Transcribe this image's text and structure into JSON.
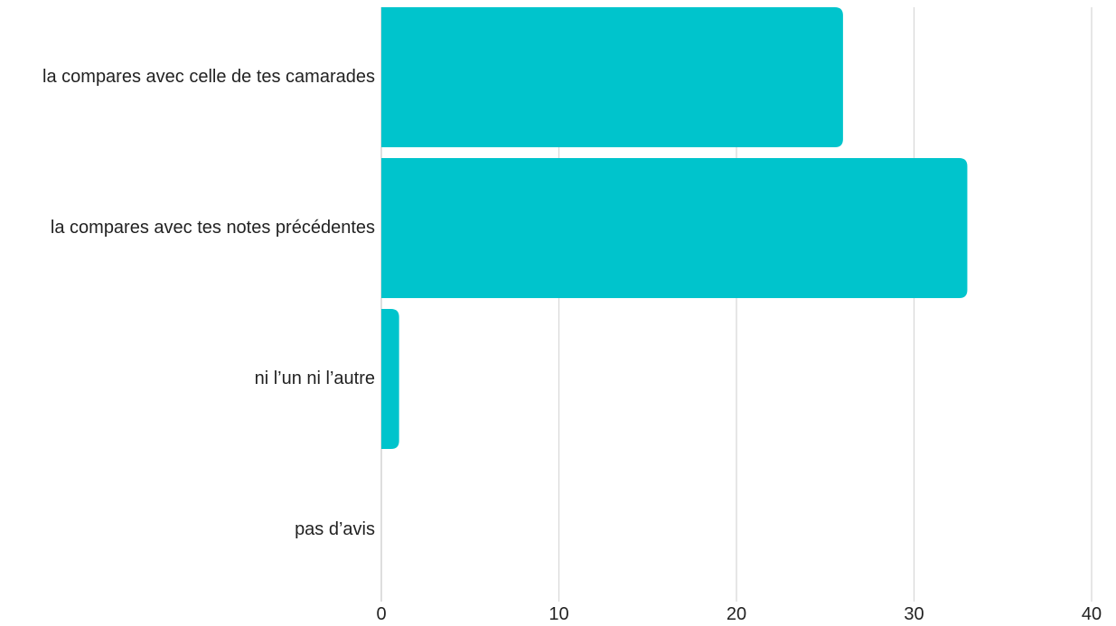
{
  "chart_data": {
    "type": "bar",
    "orientation": "horizontal",
    "title": "",
    "xlabel": "",
    "ylabel": "",
    "categories": [
      "la compares avec celle de tes camarades",
      "la compares avec tes notes précédentes",
      "ni l’un ni l’autre",
      "pas d’avis"
    ],
    "values": [
      26,
      33,
      1,
      0
    ],
    "xlim": [
      0,
      40
    ],
    "xticks": [
      "0",
      "10",
      "20",
      "30",
      "40"
    ],
    "grid": true,
    "legend": "none",
    "bar_color": "#00c4cc"
  }
}
